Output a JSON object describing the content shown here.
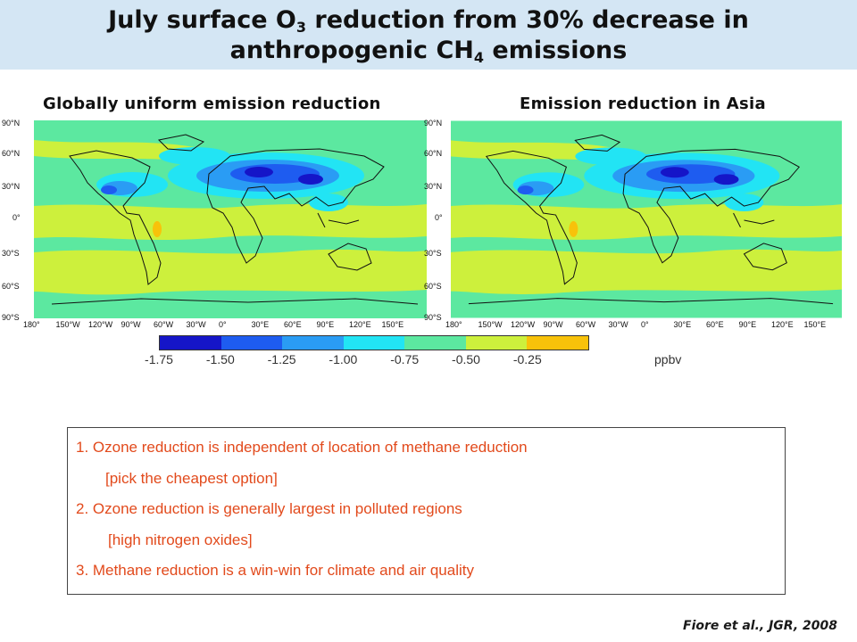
{
  "title": {
    "line1_pre": "July surface O",
    "line1_sub": "3",
    "line1_post": " reduction from 30% decrease in",
    "line2_pre": "anthropogenic CH",
    "line2_sub": "4",
    "line2_post": " emissions"
  },
  "maps": {
    "left_heading": "Globally uniform emission reduction",
    "right_heading": "Emission reduction in Asia",
    "lat_labels": [
      "90°N",
      "60°N",
      "30°N",
      "0°",
      "30°S",
      "60°S",
      "90°S"
    ],
    "lon_labels": [
      "180°",
      "150°W",
      "120°W",
      "90°W",
      "60°W",
      "30°W",
      "0°",
      "30°E",
      "60°E",
      "90°E",
      "120°E",
      "150°E"
    ]
  },
  "colorbar": {
    "ticks": [
      "-1.75",
      "-1.50",
      "-1.25",
      "-1.00",
      "-0.75",
      "-0.50",
      "-0.25"
    ],
    "unit": "ppbv",
    "colors": [
      "#1515c8",
      "#1e5cf0",
      "#2a9cf4",
      "#22e4f4",
      "#5ce8a0",
      "#cdf03c",
      "#f8c20a"
    ]
  },
  "notes": [
    "1. Ozone reduction is independent of location of methane reduction",
    "[pick the cheapest option]",
    "2. Ozone reduction is generally largest in polluted regions",
    "[high nitrogen oxides]",
    "3. Methane reduction is a win-win for climate and air quality"
  ],
  "citation": "Fiore et al., JGR, 2008"
}
